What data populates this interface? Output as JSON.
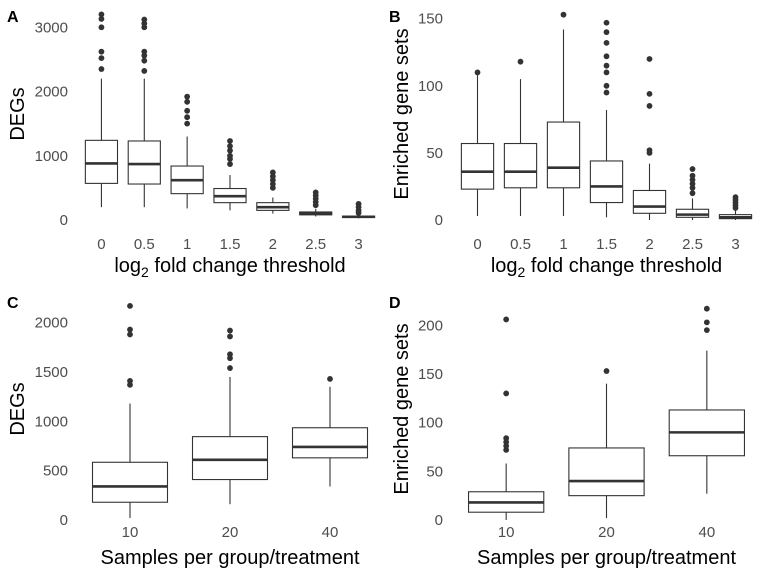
{
  "chart_data": [
    {
      "panel": "A",
      "type": "box",
      "xlabel": "log2 fold change threshold",
      "xlabel_main": "log",
      "xlabel_sub": "2",
      "xlabel_rest": " fold change threshold",
      "ylabel": "DEGs",
      "ylim": [
        0,
        3300
      ],
      "yticks": [
        0,
        1000,
        2000,
        3000
      ],
      "ytick_labels": [
        "0",
        "1000",
        "2000",
        "3000"
      ],
      "categories": [
        "0",
        "0.5",
        "1",
        "1.5",
        "2",
        "2.5",
        "3"
      ],
      "boxes": [
        {
          "whisker_low": 200,
          "q1": 570,
          "median": 880,
          "q3": 1240,
          "whisker_high": 2200,
          "outliers": [
            2350,
            2520,
            2620,
            3000,
            3130,
            3200
          ]
        },
        {
          "whisker_low": 200,
          "q1": 560,
          "median": 870,
          "q3": 1230,
          "whisker_high": 2200,
          "outliers": [
            2320,
            2480,
            2560,
            2620,
            3000,
            3060,
            3120
          ]
        },
        {
          "whisker_low": 180,
          "q1": 410,
          "median": 620,
          "q3": 840,
          "whisker_high": 1300,
          "outliers": [
            1500,
            1600,
            1700,
            1840,
            1920
          ]
        },
        {
          "whisker_low": 150,
          "q1": 270,
          "median": 370,
          "q3": 490,
          "whisker_high": 700,
          "outliers": [
            870,
            950,
            1000,
            1080,
            1150,
            1230
          ]
        },
        {
          "whisker_low": 100,
          "q1": 150,
          "median": 200,
          "q3": 270,
          "whisker_high": 350,
          "outliers": [
            500,
            560,
            620,
            680,
            740
          ]
        },
        {
          "whisker_low": 55,
          "q1": 80,
          "median": 100,
          "q3": 125,
          "whisker_high": 175,
          "outliers": [
            230,
            280,
            330,
            380,
            430
          ]
        },
        {
          "whisker_low": 25,
          "q1": 40,
          "median": 50,
          "q3": 60,
          "whisker_high": 80,
          "outliers": [
            110,
            150,
            200,
            250
          ]
        }
      ]
    },
    {
      "panel": "B",
      "type": "box",
      "xlabel": "log2 fold change threshold",
      "xlabel_main": "log",
      "xlabel_sub": "2",
      "xlabel_rest": " fold change threshold",
      "ylabel": "Enriched gene sets",
      "ylim": [
        0,
        158
      ],
      "yticks": [
        0,
        50,
        100,
        150
      ],
      "ytick_labels": [
        "0",
        "50",
        "100",
        "150"
      ],
      "categories": [
        "0",
        "0.5",
        "1",
        "1.5",
        "2",
        "2.5",
        "3"
      ],
      "boxes": [
        {
          "whisker_low": 3,
          "q1": 23,
          "median": 36,
          "q3": 57,
          "whisker_high": 108,
          "outliers": [
            110
          ]
        },
        {
          "whisker_low": 3,
          "q1": 24,
          "median": 36,
          "q3": 57,
          "whisker_high": 105,
          "outliers": [
            118
          ]
        },
        {
          "whisker_low": 3,
          "q1": 24,
          "median": 39,
          "q3": 73,
          "whisker_high": 142,
          "outliers": [
            153
          ]
        },
        {
          "whisker_low": 2,
          "q1": 13,
          "median": 25,
          "q3": 44,
          "whisker_high": 82,
          "outliers": [
            95,
            100,
            110,
            115,
            122,
            132,
            140,
            147
          ]
        },
        {
          "whisker_low": 0,
          "q1": 5,
          "median": 10,
          "q3": 22,
          "whisker_high": 42,
          "outliers": [
            50,
            52,
            85,
            94,
            120
          ]
        },
        {
          "whisker_low": 0,
          "q1": 2,
          "median": 4,
          "q3": 8,
          "whisker_high": 16,
          "outliers": [
            20,
            24,
            27,
            30,
            33,
            38
          ]
        },
        {
          "whisker_low": 0,
          "q1": 1,
          "median": 2,
          "q3": 4,
          "whisker_high": 7,
          "outliers": [
            9,
            11,
            13,
            15,
            17
          ]
        }
      ]
    },
    {
      "panel": "C",
      "type": "box",
      "xlabel": "Samples per group/treatment",
      "ylabel": "DEGs",
      "ylim": [
        0,
        2250
      ],
      "yticks": [
        0,
        500,
        1000,
        1500,
        2000
      ],
      "ytick_labels": [
        "0",
        "500",
        "1000",
        "1500",
        "2000"
      ],
      "categories": [
        "10",
        "20",
        "40"
      ],
      "boxes": [
        {
          "whisker_low": 20,
          "q1": 180,
          "median": 340,
          "q3": 585,
          "whisker_high": 1180,
          "outliers": [
            1370,
            1410,
            1880,
            1930,
            2170
          ]
        },
        {
          "whisker_low": 160,
          "q1": 410,
          "median": 610,
          "q3": 845,
          "whisker_high": 1450,
          "outliers": [
            1540,
            1640,
            1680,
            1860,
            1920
          ]
        },
        {
          "whisker_low": 340,
          "q1": 630,
          "median": 740,
          "q3": 935,
          "whisker_high": 1350,
          "outliers": [
            1430
          ]
        }
      ]
    },
    {
      "panel": "D",
      "type": "box",
      "xlabel": "Samples per group/treatment",
      "ylabel": "Enriched gene sets",
      "ylim": [
        0,
        228
      ],
      "yticks": [
        0,
        50,
        100,
        150,
        200
      ],
      "ytick_labels": [
        "0",
        "50",
        "100",
        "150",
        "200"
      ],
      "categories": [
        "10",
        "20",
        "40"
      ],
      "boxes": [
        {
          "whisker_low": 0,
          "q1": 8,
          "median": 18,
          "q3": 29,
          "whisker_high": 58,
          "outliers": [
            72,
            76,
            80,
            84,
            130,
            206
          ]
        },
        {
          "whisker_low": 2,
          "q1": 25,
          "median": 40,
          "q3": 74,
          "whisker_high": 140,
          "outliers": [
            153
          ]
        },
        {
          "whisker_low": 27,
          "q1": 66,
          "median": 90,
          "q3": 113,
          "whisker_high": 174,
          "outliers": [
            195,
            203,
            217
          ]
        }
      ]
    }
  ]
}
